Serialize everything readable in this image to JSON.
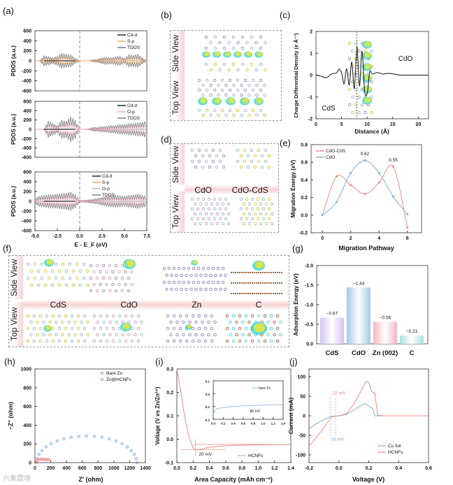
{
  "panel_labels": {
    "a": "(a)",
    "b": "(b)",
    "c": "(c)",
    "d": "(d)",
    "e": "(e)",
    "f": "(f)",
    "g": "(g)",
    "h": "(h)",
    "i": "(i)",
    "j": "(j)"
  },
  "structures": {
    "side_view": "Side View",
    "top_view": "Top View",
    "c_left": "CdS",
    "c_right": "CdO",
    "d_labels": [
      "CdO",
      "CdO-CdS"
    ],
    "f_labels": [
      "CdS",
      "CdO",
      "Zn",
      "C"
    ]
  },
  "watermark": "六奥霞境",
  "colors": {
    "cdd": "#222222",
    "sp": "#f0a860",
    "op": "#f2a6c8",
    "tdos": "#777777",
    "red": "#f08a8a",
    "blue": "#7eb1d8",
    "yellow": "#e6e63c",
    "cyan": "#43d6d0"
  },
  "chart_data": [
    {
      "id": "a",
      "type": "line",
      "ylabel": "PDOS (a.u.)",
      "xlabel": "E - E_F (eV)",
      "xlim": [
        -5,
        7.5
      ],
      "ylim": [
        -600,
        600
      ],
      "xticks": [
        "-5.0",
        "-2.5",
        "0.0",
        "2.5",
        "5.0",
        "7.5"
      ],
      "yticks": [
        "600",
        "400",
        "200",
        "0",
        "-200",
        "-400",
        "-600"
      ],
      "x": [
        -5,
        -4.5,
        -4,
        -3.5,
        -3,
        -2.5,
        -2,
        -1.5,
        -1,
        -0.5,
        0,
        0.5,
        1,
        1.5,
        2,
        2.5,
        3,
        3.5,
        4,
        4.5,
        5,
        5.5,
        6,
        6.5,
        7,
        7.5
      ],
      "subplots": [
        {
          "legend": [
            "Cd-d",
            "S-p",
            "TDOS"
          ],
          "tdos_envelope": [
            0,
            0,
            100,
            80,
            60,
            90,
            150,
            130,
            120,
            50,
            0,
            0,
            0,
            20,
            30,
            60,
            70,
            60,
            80,
            90,
            50,
            120,
            110,
            130,
            60,
            0
          ]
        },
        {
          "legend": [
            "Cd-d",
            "O-p",
            "TDOS"
          ],
          "tdos_envelope": [
            0,
            0,
            0,
            180,
            120,
            80,
            200,
            180,
            270,
            200,
            0,
            0,
            10,
            40,
            40,
            60,
            60,
            80,
            80,
            100,
            100,
            120,
            120,
            140,
            150,
            180
          ]
        },
        {
          "legend": [
            "Cd-d",
            "S-p",
            "O-p",
            "TDOS"
          ],
          "tdos_envelope": [
            60,
            100,
            120,
            130,
            140,
            150,
            160,
            170,
            190,
            130,
            20,
            20,
            30,
            40,
            60,
            80,
            100,
            110,
            120,
            110,
            100,
            120,
            130,
            150,
            120,
            100
          ]
        }
      ]
    },
    {
      "id": "c",
      "type": "line",
      "ylabel": "Charge Differential Density (e Å⁻¹)",
      "xlabel": "Distance (Å)",
      "xlim": [
        0,
        22
      ],
      "ylim": [
        -2,
        2
      ],
      "xticks": [
        "0",
        "5",
        "10",
        "15",
        "20"
      ],
      "yticks": [
        "2",
        "1",
        "0",
        "-1",
        "-2"
      ],
      "x": [
        0,
        1,
        2,
        3,
        4,
        4.5,
        5,
        5.5,
        6,
        6.5,
        7,
        7.5,
        8,
        8.5,
        9,
        9.5,
        10,
        10.5,
        11,
        12,
        13,
        14,
        15,
        16,
        17,
        22
      ],
      "y": [
        0,
        -0.05,
        -0.12,
        0.05,
        0.1,
        0.28,
        0.1,
        -0.4,
        0.3,
        -0.45,
        0.6,
        -0.6,
        1.3,
        -0.5,
        1.1,
        -0.7,
        -0.85,
        0.15,
        0.05,
        0.12,
        0.05,
        0.08,
        0.06,
        0.02,
        0,
        0
      ],
      "interface": 8
    },
    {
      "id": "e",
      "type": "line",
      "ylabel": "Migration Energy (eV)",
      "xlabel": "Migration Pathway",
      "xlim": [
        -0.8,
        7
      ],
      "ylim": [
        -0.2,
        0.8
      ],
      "xticks": [
        "0",
        "2",
        "4",
        "6"
      ],
      "yticks": [
        "0.8",
        "0.6",
        "0.4",
        "0.2",
        "0.0",
        "-0.2"
      ],
      "x": [
        0,
        1,
        2,
        3,
        4,
        5,
        6
      ],
      "series": [
        {
          "name": "CdO-CdS",
          "values": [
            0,
            0.44,
            0.34,
            0.24,
            0.37,
            0.55,
            -0.14
          ]
        },
        {
          "name": "CdO",
          "values": [
            0,
            0.15,
            0.48,
            0.62,
            0.48,
            0.21,
            0.01
          ]
        }
      ],
      "annotations": [
        "0.62",
        "0.55"
      ]
    },
    {
      "id": "g",
      "type": "bar",
      "ylabel": "Adsorption Energy (eV)",
      "categories": [
        "CdS",
        "CdO",
        "Zn (002)",
        "C"
      ],
      "values": [
        -0.67,
        -1.44,
        -0.56,
        -0.21
      ],
      "labels": [
        "−0.67",
        "−1.44",
        "−0.56",
        "−0.21"
      ],
      "ylim": [
        0,
        -2.0
      ],
      "yticks": [
        "-2.0",
        "-1.5",
        "-1.0",
        "-0.5",
        "0.0"
      ]
    },
    {
      "id": "h",
      "type": "scatter",
      "ylabel": "−Z'' (ohm)",
      "xlabel": "Z' (ohm)",
      "xlim": [
        0,
        1400
      ],
      "ylim": [
        0,
        1000
      ],
      "xticks": [
        "0",
        "200",
        "400",
        "600",
        "800",
        "1000",
        "1200",
        "1400"
      ],
      "yticks": [
        "1000",
        "800",
        "600",
        "400",
        "200",
        "0"
      ],
      "series": [
        {
          "name": "Bare Zn",
          "x": [
            20,
            28,
            51,
            89,
            141,
            206,
            282,
            367,
            459,
            556,
            655,
            754,
            851,
            943,
            1028,
            1104,
            1169,
            1221,
            1259,
            1282,
            1290
          ],
          "y": [
            0,
            44,
            88,
            129,
            168,
            201,
            231,
            254,
            271,
            282,
            285,
            282,
            271,
            254,
            231,
            201,
            168,
            129,
            88,
            44,
            0
          ]
        },
        {
          "name": "Zn@HCNFs",
          "x": [
            5,
            20,
            40,
            60,
            80,
            100,
            120,
            140,
            160,
            180
          ],
          "y": [
            5,
            20,
            30,
            35,
            36,
            35,
            34,
            33,
            32,
            31
          ]
        }
      ]
    },
    {
      "id": "i",
      "type": "line",
      "ylabel": "Voltage (V vs Zn/Zn²⁺)",
      "xlabel": "Area Capacity (mAh cm⁻²)",
      "xlim": [
        0,
        1.4
      ],
      "ylim": [
        -0.1,
        0.3
      ],
      "xticks": [
        "0.0",
        "0.2",
        "0.4",
        "0.6",
        "0.8",
        "1.0",
        "1.2",
        "1.4"
      ],
      "yticks": [
        "0.3",
        "0.2",
        "0.1",
        "0.0",
        "-0.1"
      ],
      "series": [
        {
          "name": "HCNFs",
          "x": [
            0,
            0.05,
            0.1,
            0.15,
            0.2,
            0.23,
            0.3,
            0.4,
            0.6,
            1.0,
            1.4
          ],
          "y": [
            0.3,
            0.2,
            0.09,
            0.01,
            -0.035,
            -0.045,
            -0.043,
            -0.035,
            -0.028,
            -0.024,
            -0.022
          ]
        }
      ],
      "annotation": "20 mV",
      "inset": {
        "xlim": [
          0,
          1.4
        ],
        "ylim": [
          -0.2,
          0.1
        ],
        "xticks": [
          "0.0",
          "0.2",
          "0.4",
          "0.6",
          "0.8",
          "1.0",
          "1.2",
          "1.4"
        ],
        "yticks": [
          "0.1",
          "0.0",
          "-0.1",
          "-0.2"
        ],
        "series": [
          {
            "name": "bare Zn",
            "x": [
              0,
              0.02,
              0.05,
              0.1,
              0.2,
              0.4,
              0.6,
              1.0,
              1.4
            ],
            "y": [
              -0.16,
              -0.14,
              -0.125,
              -0.115,
              -0.108,
              -0.1,
              -0.095,
              -0.09,
              -0.085
            ]
          }
        ],
        "annotation": "85 mV"
      }
    },
    {
      "id": "j",
      "type": "line",
      "ylabel": "Current (mA)",
      "xlabel": "Voltage (V)",
      "xlim": [
        -0.2,
        0.6
      ],
      "ylim": [
        -120,
        120
      ],
      "xticks": [
        "-0.2",
        "0.0",
        "0.2",
        "0.4",
        "0.6"
      ],
      "yticks": [
        "100",
        "50",
        "0",
        "-50",
        "-100"
      ],
      "series": [
        {
          "name": "Cu foil",
          "x": [
            -0.2,
            -0.15,
            -0.1,
            -0.05,
            0,
            0.05,
            0.1,
            0.15,
            0.17,
            0.2,
            0.22,
            0.23,
            0.24,
            0.3,
            0.6
          ],
          "y": [
            -33,
            -20,
            -10,
            -1,
            0,
            3,
            15,
            27,
            32,
            25,
            20,
            15,
            0,
            0,
            0
          ]
        },
        {
          "name": "HCNFs",
          "x": [
            -0.2,
            -0.15,
            -0.1,
            -0.05,
            0,
            0.05,
            0.1,
            0.15,
            0.18,
            0.2,
            0.22,
            0.24,
            0.26,
            0.3,
            0.6
          ],
          "y": [
            -78,
            -55,
            -30,
            -3,
            0,
            5,
            30,
            65,
            88,
            85,
            62,
            58,
            2,
            0,
            0
          ]
        }
      ],
      "annotations": [
        "22 mV",
        "58 mV"
      ]
    }
  ]
}
